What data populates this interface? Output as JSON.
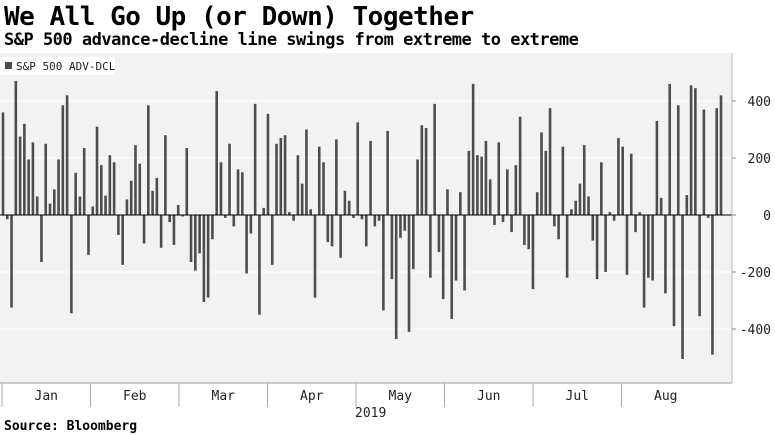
{
  "header": {
    "title": "We All Go Up (or Down) Together",
    "subtitle": "S&P 500 advance-decline line swings from extreme to extreme"
  },
  "footer": {
    "source": "Source: Bloomberg"
  },
  "colors": {
    "bar": "#4d4d4d",
    "plot_bg": "#f2f2f2",
    "grid": "#ffffff",
    "zero_line": "#000000"
  },
  "chart_data": {
    "type": "bar",
    "title": "We All Go Up (or Down) Together",
    "subtitle": "S&P 500 advance-decline line swings from extreme to extreme",
    "legend": [
      "S&P 500 ADV-DCL"
    ],
    "legend_position": "top-left",
    "y_axis_side": "right",
    "ylim": [
      -560,
      560
    ],
    "yticks": [
      -400,
      -200,
      0,
      200,
      400
    ],
    "ytick_labels": [
      "-400",
      "-200",
      "0",
      "200",
      "400"
    ],
    "months": [
      "Jan",
      "Feb",
      "Mar",
      "Apr",
      "May",
      "Jun",
      "Jul",
      "Aug"
    ],
    "year_label": "2019",
    "grid": true,
    "series": [
      {
        "name": "S&P 500 ADV-DCL",
        "values": [
          360,
          -15,
          -325,
          470,
          275,
          320,
          195,
          255,
          65,
          -165,
          250,
          40,
          90,
          195,
          385,
          420,
          -345,
          148,
          65,
          235,
          -140,
          30,
          310,
          175,
          68,
          210,
          185,
          -70,
          -175,
          55,
          120,
          245,
          180,
          -100,
          385,
          85,
          130,
          -115,
          280,
          -25,
          -105,
          35,
          -5,
          235,
          -165,
          -195,
          -135,
          -305,
          -290,
          -85,
          435,
          185,
          -10,
          250,
          -40,
          160,
          150,
          -205,
          -65,
          390,
          -350,
          25,
          355,
          -175,
          250,
          270,
          280,
          10,
          -20,
          210,
          110,
          300,
          20,
          -290,
          240,
          185,
          -95,
          -110,
          265,
          -150,
          85,
          50,
          -10,
          325,
          -15,
          -110,
          260,
          -40,
          -20,
          -335,
          295,
          -225,
          -435,
          -80,
          -55,
          -410,
          -190,
          195,
          315,
          305,
          -220,
          390,
          -130,
          -295,
          90,
          -365,
          -230,
          80,
          -265,
          225,
          460,
          210,
          205,
          260,
          125,
          -35,
          255,
          -25,
          160,
          -60,
          175,
          345,
          -105,
          -120,
          -260,
          80,
          290,
          225,
          375,
          -40,
          -85,
          240,
          -220,
          20,
          50,
          110,
          245,
          65,
          -90,
          -225,
          185,
          -200,
          10,
          -20,
          270,
          240,
          -210,
          215,
          -60,
          10,
          -325,
          -220,
          -230,
          330,
          60,
          -275,
          460,
          -390,
          385,
          -505,
          70,
          455,
          445,
          -355,
          370,
          -10,
          -490,
          375,
          420
        ]
      }
    ]
  }
}
